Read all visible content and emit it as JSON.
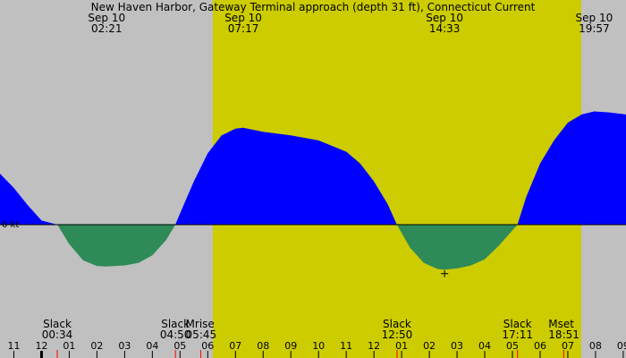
{
  "chart_data": {
    "type": "area",
    "title": "New Haven Harbor, Gateway Terminal approach (depth 31 ft), Connecticut Current",
    "zero_label": "0 kt",
    "x_range_hours": [
      -1.5,
      21.1
    ],
    "y_range_kt": [
      -1.0,
      2.5
    ],
    "colors": {
      "night": "#c0c0c0",
      "day": "#cccc00",
      "flood": "#0000ff",
      "ebb": "#2e8b57",
      "tick": "#000000",
      "moon_tick": "#ff0000"
    },
    "daylight": {
      "start_hour": 6.18,
      "end_hour": 19.48
    },
    "top_events": [
      {
        "date": "Sep 10",
        "time": "02:21"
      },
      {
        "date": "Sep 10",
        "time": "07:17"
      },
      {
        "date": "Sep 10",
        "time": "14:33"
      },
      {
        "date": "Sep 10",
        "time": "19:57"
      }
    ],
    "bottom_events": [
      {
        "label": "Slack",
        "time": "00:34"
      },
      {
        "label": "Slack",
        "time": "04:50"
      },
      {
        "label": "Mrise",
        "time": "05:45"
      },
      {
        "label": "Slack",
        "time": "12:50"
      },
      {
        "label": "Slack",
        "time": "17:11"
      },
      {
        "label": "Mset",
        "time": "18:51"
      }
    ],
    "hour_ticks": [
      "11",
      "12",
      "01",
      "02",
      "03",
      "04",
      "05",
      "06",
      "07",
      "08",
      "09",
      "10",
      "11",
      "12",
      "01",
      "02",
      "03",
      "04",
      "05",
      "06",
      "07",
      "08",
      "09"
    ],
    "series": [
      {
        "points": [
          [
            -1.5,
            1.0
          ],
          [
            -1.0,
            0.72
          ],
          [
            -0.5,
            0.38
          ],
          [
            0.0,
            0.08
          ],
          [
            0.57,
            0.0
          ],
          [
            1.0,
            -0.38
          ],
          [
            1.5,
            -0.7
          ],
          [
            2.0,
            -0.81
          ],
          [
            2.35,
            -0.82
          ],
          [
            3.0,
            -0.8
          ],
          [
            3.5,
            -0.75
          ],
          [
            4.0,
            -0.6
          ],
          [
            4.5,
            -0.3
          ],
          [
            4.83,
            0.0
          ],
          [
            5.0,
            0.22
          ],
          [
            5.5,
            0.85
          ],
          [
            6.0,
            1.4
          ],
          [
            6.5,
            1.75
          ],
          [
            7.0,
            1.88
          ],
          [
            7.28,
            1.9
          ],
          [
            8.0,
            1.82
          ],
          [
            9.0,
            1.75
          ],
          [
            10.0,
            1.65
          ],
          [
            11.0,
            1.43
          ],
          [
            11.5,
            1.2
          ],
          [
            12.0,
            0.85
          ],
          [
            12.5,
            0.4
          ],
          [
            12.83,
            0.0
          ],
          [
            13.3,
            -0.45
          ],
          [
            13.8,
            -0.75
          ],
          [
            14.3,
            -0.87
          ],
          [
            14.55,
            -0.88
          ],
          [
            15.0,
            -0.86
          ],
          [
            15.5,
            -0.8
          ],
          [
            16.0,
            -0.68
          ],
          [
            16.5,
            -0.42
          ],
          [
            17.18,
            0.0
          ],
          [
            17.5,
            0.55
          ],
          [
            18.0,
            1.2
          ],
          [
            18.5,
            1.65
          ],
          [
            19.0,
            2.0
          ],
          [
            19.5,
            2.16
          ],
          [
            19.95,
            2.22
          ],
          [
            20.5,
            2.2
          ],
          [
            21.1,
            2.16
          ]
        ]
      }
    ]
  }
}
